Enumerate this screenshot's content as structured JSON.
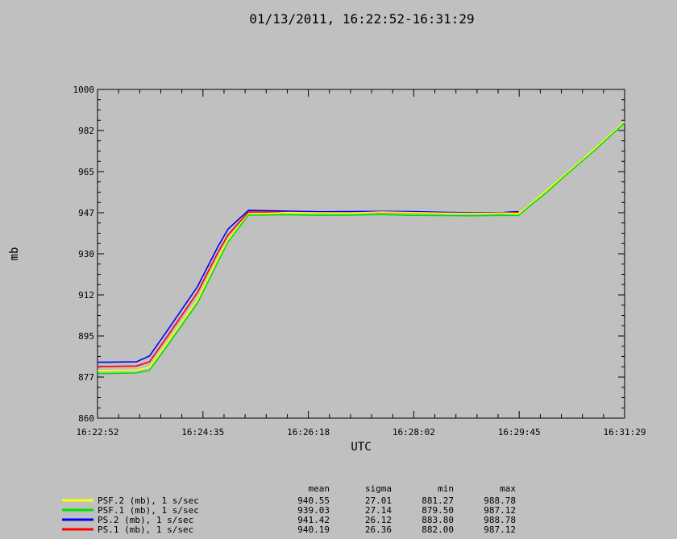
{
  "chart_data": {
    "type": "line",
    "title": "01/13/2011, 16:22:52-16:31:29",
    "xlabel": "UTC",
    "ylabel": "mb",
    "ylim": [
      860,
      1000
    ],
    "xlim": [
      "16:22:52",
      "16:31:29"
    ],
    "yticks": [
      "860",
      "877",
      "895",
      "912",
      "930",
      "947",
      "965",
      "982",
      "1000"
    ],
    "xticks": [
      "16:22:52",
      "16:24:35",
      "16:26:18",
      "16:28:02",
      "16:29:45",
      "16:31:29"
    ],
    "grid": false,
    "legend_position": "bottom",
    "series": [
      {
        "name": "PSF.2 (mb), 1 s/sec",
        "color": "#ffff00",
        "x": [
          "16:22:52",
          "16:23:00",
          "16:23:30",
          "16:23:43",
          "16:24:00",
          "16:24:30",
          "16:24:50",
          "16:25:00",
          "16:25:20",
          "16:26:00",
          "16:26:30",
          "16:27:00",
          "16:27:30",
          "16:28:00",
          "16:28:30",
          "16:29:00",
          "16:29:30",
          "16:29:45",
          "16:29:55",
          "16:30:10",
          "16:30:30",
          "16:31:00",
          "16:31:29"
        ],
        "values": [
          880.3,
          880.3,
          880.5,
          881.7,
          892.0,
          910.5,
          928.0,
          936.0,
          946.9,
          947.6,
          947.5,
          947.4,
          947.8,
          947.6,
          947.3,
          947.2,
          947.4,
          947.1,
          950.4,
          956.1,
          963.5,
          974.8,
          986.3
        ]
      },
      {
        "name": "PSF.1 (mb), 1 s/sec",
        "color": "#00e000",
        "x": [
          "16:22:52",
          "16:23:00",
          "16:23:30",
          "16:23:43",
          "16:24:00",
          "16:24:30",
          "16:24:50",
          "16:25:00",
          "16:25:20",
          "16:26:00",
          "16:26:30",
          "16:27:00",
          "16:27:30",
          "16:28:00",
          "16:28:30",
          "16:29:00",
          "16:29:30",
          "16:29:45",
          "16:29:55",
          "16:30:10",
          "16:30:30",
          "16:31:00",
          "16:31:29"
        ],
        "values": [
          879.0,
          879.0,
          879.2,
          880.4,
          890.5,
          909.0,
          926.5,
          935.0,
          946.5,
          946.6,
          946.4,
          946.5,
          946.7,
          946.4,
          946.3,
          946.2,
          946.4,
          946.3,
          950.0,
          955.3,
          963.0,
          974.2,
          985.8
        ]
      },
      {
        "name": "PS.2 (mb), 1 s/sec",
        "color": "#0000ff",
        "x": [
          "16:22:52",
          "16:23:00",
          "16:23:30",
          "16:23:43",
          "16:24:00",
          "16:24:30",
          "16:24:50",
          "16:25:00",
          "16:25:20",
          "16:26:00",
          "16:26:30",
          "16:27:00",
          "16:27:30",
          "16:28:00",
          "16:28:30",
          "16:29:00",
          "16:29:30",
          "16:29:45"
        ],
        "values": [
          883.8,
          883.8,
          884.0,
          886.5,
          897.0,
          916.0,
          933.0,
          940.5,
          948.5,
          948.2,
          947.9,
          948.0,
          948.1,
          948.0,
          947.7,
          947.5,
          947.6,
          948.0
        ]
      },
      {
        "name": "PS.1 (mb), 1 s/sec",
        "color": "#ff0000",
        "x": [
          "16:22:52",
          "16:23:00",
          "16:23:30",
          "16:23:43",
          "16:24:00",
          "16:24:30",
          "16:24:50",
          "16:25:00",
          "16:25:20",
          "16:26:00",
          "16:26:30",
          "16:27:00",
          "16:27:30",
          "16:28:00",
          "16:28:30",
          "16:29:00",
          "16:29:30",
          "16:29:45"
        ],
        "values": [
          882.0,
          882.0,
          882.2,
          884.0,
          894.5,
          913.5,
          930.5,
          938.0,
          947.8,
          947.7,
          947.5,
          947.5,
          947.7,
          947.5,
          947.3,
          947.2,
          947.3,
          947.7
        ]
      }
    ],
    "stats_headers": [
      "mean",
      "sigma",
      "min",
      "max"
    ],
    "stats": [
      [
        "940.55",
        "27.01",
        "881.27",
        "988.78"
      ],
      [
        "939.03",
        "27.14",
        "879.50",
        "987.12"
      ],
      [
        "941.42",
        "26.12",
        "883.80",
        "988.78"
      ],
      [
        "940.19",
        "26.36",
        "882.00",
        "987.12"
      ]
    ]
  }
}
